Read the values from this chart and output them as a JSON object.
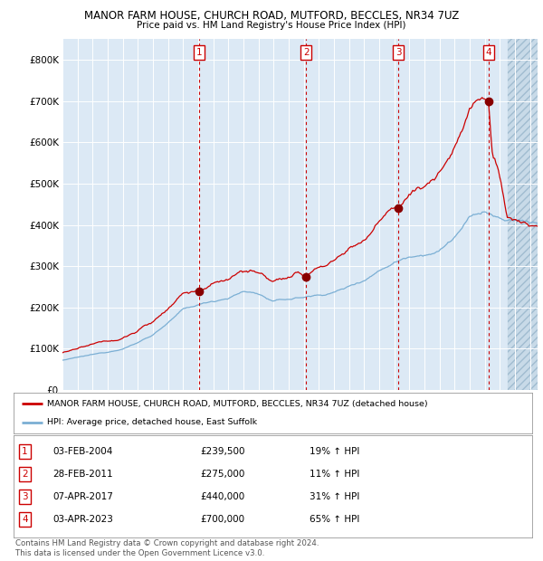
{
  "title1": "MANOR FARM HOUSE, CHURCH ROAD, MUTFORD, BECCLES, NR34 7UZ",
  "title2": "Price paid vs. HM Land Registry's House Price Index (HPI)",
  "background_color": "#dce9f5",
  "grid_color": "#ffffff",
  "red_line_color": "#cc0000",
  "blue_line_color": "#7bafd4",
  "sale_marker_color": "#880000",
  "dashed_line_color": "#cc0000",
  "ylim": [
    0,
    850000
  ],
  "yticks": [
    0,
    100000,
    200000,
    300000,
    400000,
    500000,
    600000,
    700000,
    800000
  ],
  "ytick_labels": [
    "£0",
    "£100K",
    "£200K",
    "£300K",
    "£400K",
    "£500K",
    "£600K",
    "£700K",
    "£800K"
  ],
  "xlim_start": 1995.0,
  "xlim_end": 2026.5,
  "hatch_start": 2024.5,
  "sales": [
    {
      "label": "1",
      "year": 2004.08,
      "price": 239500
    },
    {
      "label": "2",
      "year": 2011.15,
      "price": 275000
    },
    {
      "label": "3",
      "year": 2017.27,
      "price": 440000
    },
    {
      "label": "4",
      "year": 2023.25,
      "price": 700000
    }
  ],
  "legend_red_text": "MANOR FARM HOUSE, CHURCH ROAD, MUTFORD, BECCLES, NR34 7UZ (detached house)",
  "legend_blue_text": "HPI: Average price, detached house, East Suffolk",
  "table_rows": [
    {
      "num": "1",
      "date": "03-FEB-2004",
      "price": "£239,500",
      "pct": "19% ↑ HPI"
    },
    {
      "num": "2",
      "date": "28-FEB-2011",
      "price": "£275,000",
      "pct": "11% ↑ HPI"
    },
    {
      "num": "3",
      "date": "07-APR-2017",
      "price": "£440,000",
      "pct": "31% ↑ HPI"
    },
    {
      "num": "4",
      "date": "03-APR-2023",
      "price": "£700,000",
      "pct": "65% ↑ HPI"
    }
  ],
  "footer": "Contains HM Land Registry data © Crown copyright and database right 2024.\nThis data is licensed under the Open Government Licence v3.0."
}
